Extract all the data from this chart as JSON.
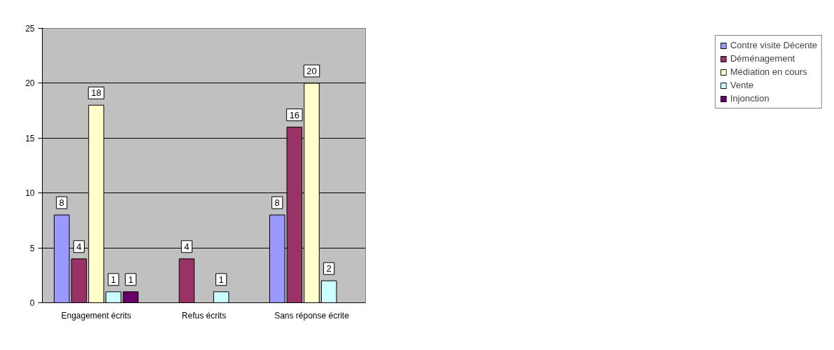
{
  "chart_data": {
    "type": "bar",
    "categories": [
      "Engagement écrits",
      "Refus écrits",
      "Sans réponse écrite"
    ],
    "series": [
      {
        "name": "Contre visite Décente",
        "color": "#9999ff",
        "values": [
          8,
          null,
          8
        ]
      },
      {
        "name": "Déménagement",
        "color": "#993366",
        "values": [
          4,
          4,
          16
        ]
      },
      {
        "name": "Médiation en cours",
        "color": "#ffffcc",
        "values": [
          18,
          null,
          20
        ]
      },
      {
        "name": "Vente",
        "color": "#ccffff",
        "values": [
          1,
          1,
          2
        ]
      },
      {
        "name": "Injonction",
        "color": "#660066",
        "values": [
          1,
          null,
          null
        ]
      }
    ],
    "ylim": [
      0,
      25
    ],
    "yticks": [
      0,
      5,
      10,
      15,
      20,
      25
    ],
    "grid": "y",
    "legend": "right",
    "data_labels": true
  }
}
